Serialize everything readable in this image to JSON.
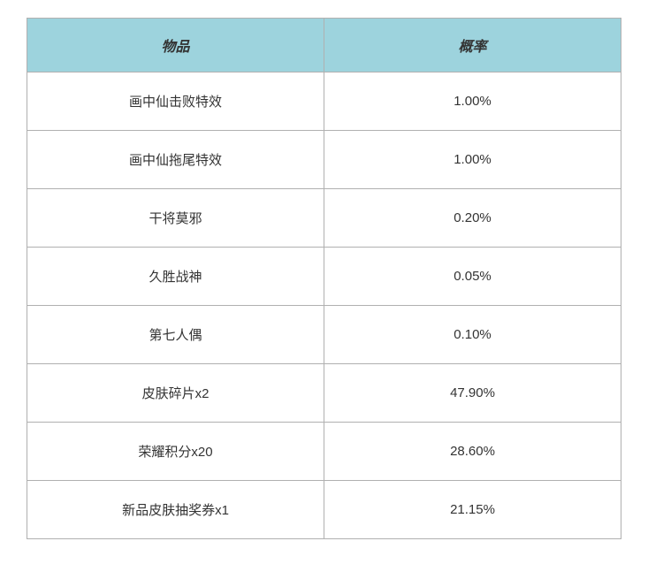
{
  "table": {
    "columns": [
      {
        "label": "物品",
        "key": "item"
      },
      {
        "label": "概率",
        "key": "rate"
      }
    ],
    "rows": [
      {
        "item": "画中仙击败特效",
        "rate": "1.00%"
      },
      {
        "item": "画中仙拖尾特效",
        "rate": "1.00%"
      },
      {
        "item": "干将莫邪",
        "rate": "0.20%"
      },
      {
        "item": "久胜战神",
        "rate": "0.05%"
      },
      {
        "item": "第七人偶",
        "rate": "0.10%"
      },
      {
        "item": "皮肤碎片x2",
        "rate": "47.90%"
      },
      {
        "item": "荣耀积分x20",
        "rate": "28.60%"
      },
      {
        "item": "新品皮肤抽奖券x1",
        "rate": "21.15%"
      }
    ],
    "styling": {
      "header_background_color": "#9dd3dd",
      "header_text_color": "#333333",
      "header_font_weight": "bold",
      "header_font_style": "italic",
      "header_fontsize": 16,
      "cell_text_color": "#333333",
      "cell_fontsize": 15,
      "cell_background_color": "#ffffff",
      "border_color": "#b0b0b0",
      "column_widths": [
        "50%",
        "50%"
      ],
      "text_align": "center",
      "header_padding": "18px 10px",
      "cell_padding": "22px 10px"
    }
  }
}
